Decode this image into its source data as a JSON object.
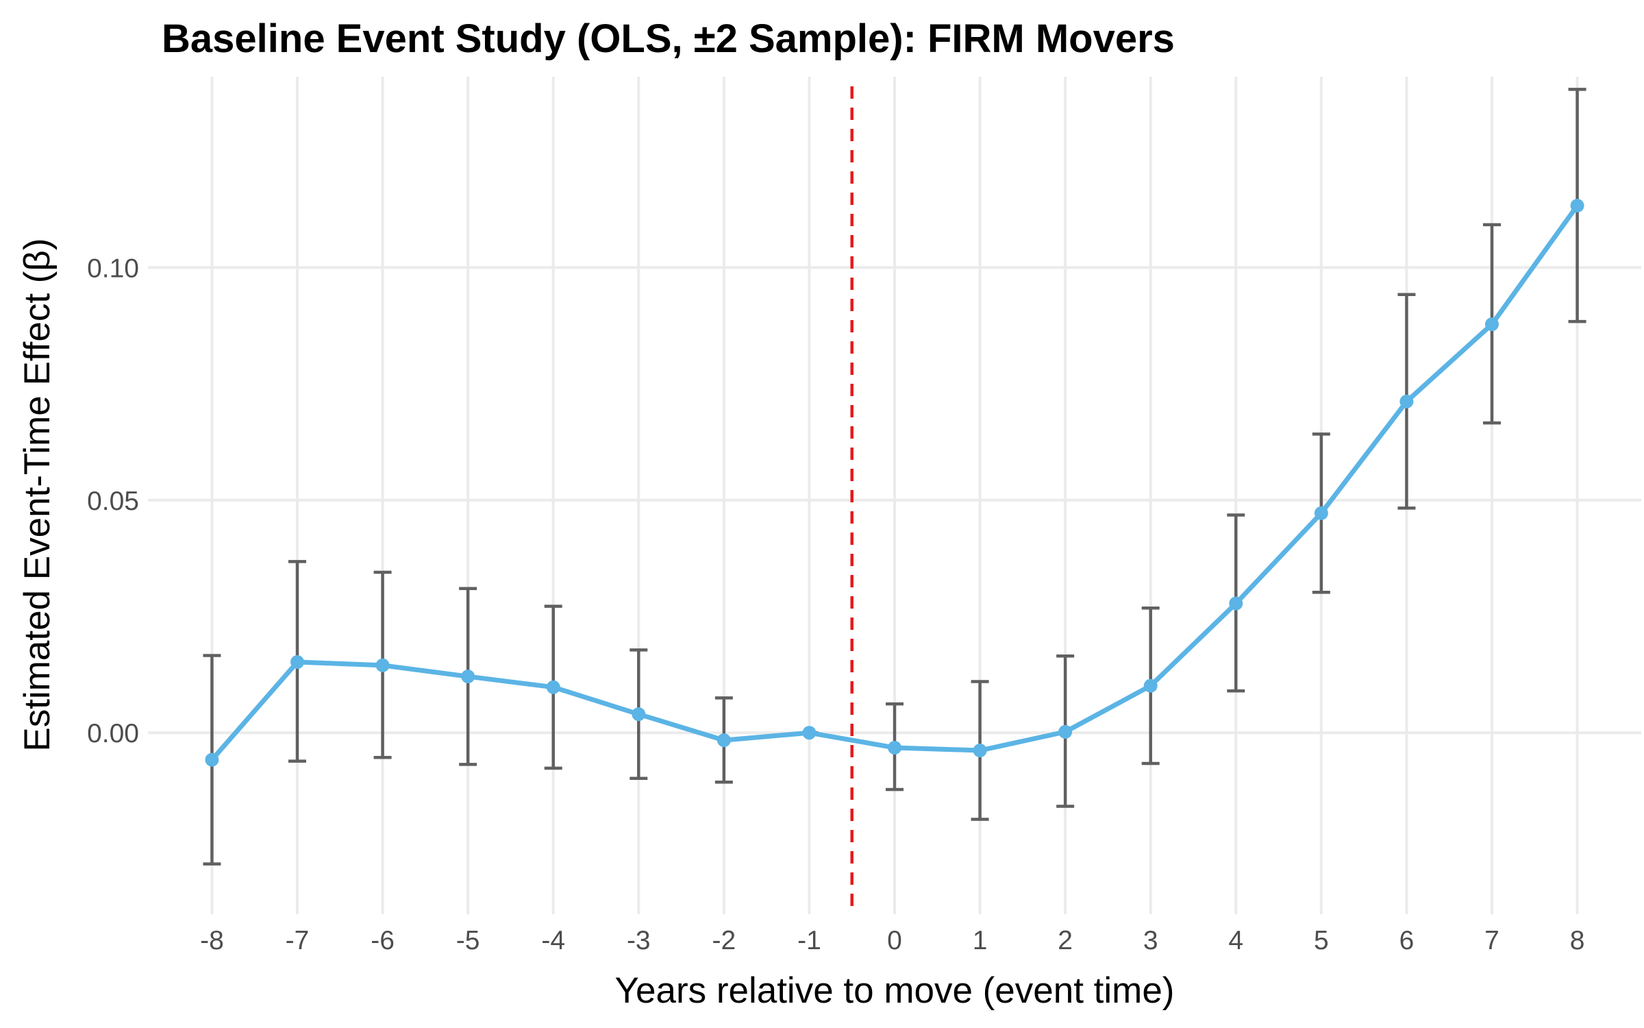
{
  "chart_data": {
    "type": "line",
    "title": "Baseline Event Study (OLS, ±2 Sample): FIRM Movers",
    "xlabel": "Years relative to move (event time)",
    "ylabel": "Estimated Event-Time Effect (β)",
    "x": [
      -8,
      -7,
      -6,
      -5,
      -4,
      -3,
      -2,
      -1,
      0,
      1,
      2,
      3,
      4,
      5,
      6,
      7,
      8
    ],
    "x_tick_labels": [
      "-8",
      "-7",
      "-6",
      "-5",
      "-4",
      "-3",
      "-2",
      "-1",
      "0",
      "1",
      "2",
      "3",
      "4",
      "5",
      "6",
      "7",
      "8"
    ],
    "y_ticks": [
      0.0,
      0.05,
      0.1
    ],
    "y_tick_labels": [
      "0.00",
      "0.05",
      "0.10"
    ],
    "xlim": [
      -8.75,
      8.75
    ],
    "ylim": [
      -0.039,
      0.141
    ],
    "grid": true,
    "reference_line": {
      "x": -0.5,
      "style": "dashed",
      "color": "#e41a1c"
    },
    "series": [
      {
        "color": "#5bb4e5",
        "values": [
          -0.0058,
          0.0152,
          0.0145,
          0.0121,
          0.0098,
          0.004,
          -0.0016,
          0.0,
          -0.0032,
          -0.0038,
          0.0002,
          0.0101,
          0.0278,
          0.0472,
          0.0712,
          0.0878,
          0.1133
        ],
        "ci_lower": [
          -0.0282,
          -0.0061,
          -0.0053,
          -0.0068,
          -0.0076,
          -0.0098,
          -0.0106,
          0.0,
          -0.0122,
          -0.0186,
          -0.0158,
          -0.0066,
          0.009,
          0.0302,
          0.0483,
          0.0666,
          0.0884
        ],
        "ci_upper": [
          0.0166,
          0.0368,
          0.0345,
          0.031,
          0.0272,
          0.0178,
          0.0075,
          0.0,
          0.0062,
          0.011,
          0.0165,
          0.0268,
          0.0468,
          0.0642,
          0.0942,
          0.1092,
          0.1383
        ]
      }
    ]
  }
}
